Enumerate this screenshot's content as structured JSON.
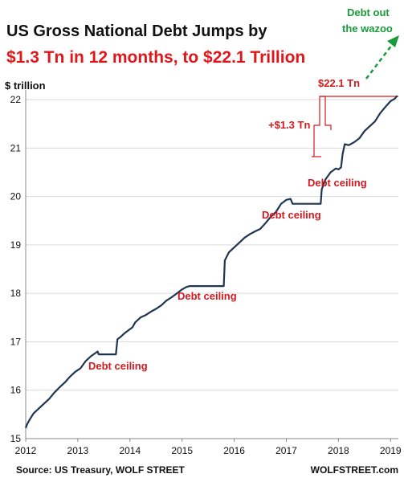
{
  "chart_data": {
    "type": "line",
    "title_line1": "US Gross National Debt Jumps by",
    "title_line2": "$1.3 Tn in 12 months, to $22.1 Trillion",
    "ylabel": "$ trillion",
    "source": "Source: US Treasury, WOLF STREET",
    "watermark": "WOLFSTREET.com",
    "xlim": [
      2012.0,
      2019.15
    ],
    "ylim": [
      15,
      22.2
    ],
    "x_ticks": [
      2012,
      2013,
      2014,
      2015,
      2016,
      2017,
      2018,
      2019
    ],
    "y_ticks": [
      15,
      16,
      17,
      18,
      19,
      20,
      21,
      22
    ],
    "grid": "horizontal",
    "series": [
      {
        "color": "#1f3550",
        "points": [
          [
            2012.0,
            15.22
          ],
          [
            2012.03,
            15.3
          ],
          [
            2012.08,
            15.4
          ],
          [
            2012.15,
            15.52
          ],
          [
            2012.25,
            15.62
          ],
          [
            2012.35,
            15.72
          ],
          [
            2012.45,
            15.82
          ],
          [
            2012.55,
            15.95
          ],
          [
            2012.65,
            16.06
          ],
          [
            2012.75,
            16.16
          ],
          [
            2012.85,
            16.28
          ],
          [
            2012.95,
            16.38
          ],
          [
            2013.05,
            16.45
          ],
          [
            2013.15,
            16.6
          ],
          [
            2013.25,
            16.7
          ],
          [
            2013.33,
            16.76
          ],
          [
            2013.38,
            16.8
          ],
          [
            2013.4,
            16.74
          ],
          [
            2013.5,
            16.74
          ],
          [
            2013.6,
            16.74
          ],
          [
            2013.7,
            16.74
          ],
          [
            2013.73,
            16.74
          ],
          [
            2013.76,
            17.05
          ],
          [
            2013.82,
            17.1
          ],
          [
            2013.9,
            17.18
          ],
          [
            2014.0,
            17.26
          ],
          [
            2014.05,
            17.3
          ],
          [
            2014.1,
            17.4
          ],
          [
            2014.2,
            17.5
          ],
          [
            2014.3,
            17.55
          ],
          [
            2014.4,
            17.62
          ],
          [
            2014.5,
            17.68
          ],
          [
            2014.6,
            17.75
          ],
          [
            2014.7,
            17.85
          ],
          [
            2014.8,
            17.92
          ],
          [
            2014.9,
            18.0
          ],
          [
            2015.0,
            18.08
          ],
          [
            2015.08,
            18.13
          ],
          [
            2015.15,
            18.15
          ],
          [
            2015.3,
            18.15
          ],
          [
            2015.5,
            18.15
          ],
          [
            2015.7,
            18.15
          ],
          [
            2015.8,
            18.15
          ],
          [
            2015.82,
            18.68
          ],
          [
            2015.9,
            18.85
          ],
          [
            2016.0,
            18.95
          ],
          [
            2016.1,
            19.05
          ],
          [
            2016.2,
            19.15
          ],
          [
            2016.3,
            19.22
          ],
          [
            2016.4,
            19.28
          ],
          [
            2016.5,
            19.33
          ],
          [
            2016.6,
            19.45
          ],
          [
            2016.7,
            19.58
          ],
          [
            2016.8,
            19.68
          ],
          [
            2016.9,
            19.85
          ],
          [
            2017.0,
            19.93
          ],
          [
            2017.08,
            19.95
          ],
          [
            2017.12,
            19.85
          ],
          [
            2017.3,
            19.85
          ],
          [
            2017.5,
            19.85
          ],
          [
            2017.66,
            19.85
          ],
          [
            2017.68,
            20.15
          ],
          [
            2017.75,
            20.35
          ],
          [
            2017.85,
            20.5
          ],
          [
            2017.95,
            20.58
          ],
          [
            2018.0,
            20.56
          ],
          [
            2018.05,
            20.6
          ],
          [
            2018.08,
            20.88
          ],
          [
            2018.12,
            21.08
          ],
          [
            2018.2,
            21.06
          ],
          [
            2018.3,
            21.12
          ],
          [
            2018.4,
            21.2
          ],
          [
            2018.5,
            21.35
          ],
          [
            2018.6,
            21.45
          ],
          [
            2018.7,
            21.55
          ],
          [
            2018.8,
            21.72
          ],
          [
            2018.9,
            21.85
          ],
          [
            2019.0,
            21.97
          ],
          [
            2019.08,
            22.02
          ],
          [
            2019.13,
            22.08
          ]
        ]
      }
    ],
    "annotations": {
      "debt_ceiling_1": "Debt ceiling",
      "debt_ceiling_2": "Debt ceiling",
      "debt_ceiling_3": "Debt ceiling",
      "debt_ceiling_4": "Debt ceiling",
      "jump_label": "+$1.3 Tn",
      "latest_label": "$22.1 Tn",
      "wazoo_line1": "Debt out",
      "wazoo_line2": "the wazoo"
    },
    "colors": {
      "line": "#1f3550",
      "annotation_red": "#d31a20",
      "annotation_green": "#1a9a3a",
      "title_red": "#e0161b"
    }
  }
}
